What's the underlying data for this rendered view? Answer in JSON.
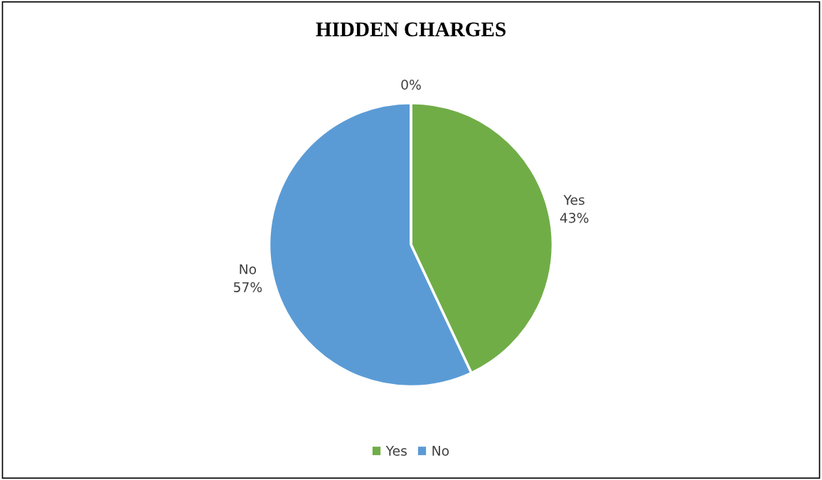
{
  "chart_data": {
    "type": "pie",
    "title": "HIDDEN CHARGES",
    "categories": [
      "Yes",
      "No",
      null
    ],
    "values": [
      43,
      57,
      0
    ],
    "colors": [
      "#70ad47",
      "#5b9bd5",
      "#a5a5a5"
    ],
    "value_labels": [
      "43%",
      "57%",
      "0%"
    ],
    "legend": "bottom"
  }
}
